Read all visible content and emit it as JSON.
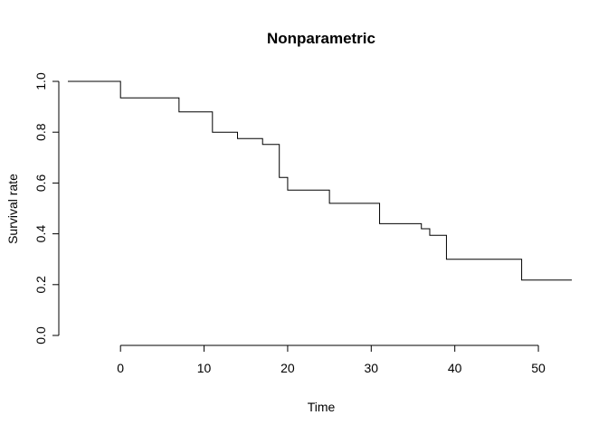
{
  "chart_data": {
    "type": "line",
    "subtype": "step",
    "title": "Nonparametric",
    "xlabel": "Time",
    "ylabel": "Survival rate",
    "xlim": [
      -6.3,
      54
    ],
    "ylim": [
      0,
      1
    ],
    "xticks": [
      0,
      10,
      20,
      30,
      40,
      50
    ],
    "xtick_labels": [
      "0",
      "10",
      "20",
      "30",
      "40",
      "50"
    ],
    "yticks": [
      0,
      0.2,
      0.4,
      0.6,
      0.8,
      1.0
    ],
    "ytick_labels": [
      "0.0",
      "0.2",
      "0.4",
      "0.6",
      "0.8",
      "1.0"
    ],
    "grid": false,
    "series": [
      {
        "x": [
          -6.3,
          0,
          7,
          11,
          14,
          17,
          19,
          20,
          25,
          31,
          36,
          37,
          39,
          48,
          54
        ],
        "y": [
          1.0,
          0.935,
          0.88,
          0.8,
          0.775,
          0.752,
          0.622,
          0.572,
          0.52,
          0.44,
          0.42,
          0.394,
          0.3,
          0.218,
          0.218
        ]
      }
    ]
  }
}
